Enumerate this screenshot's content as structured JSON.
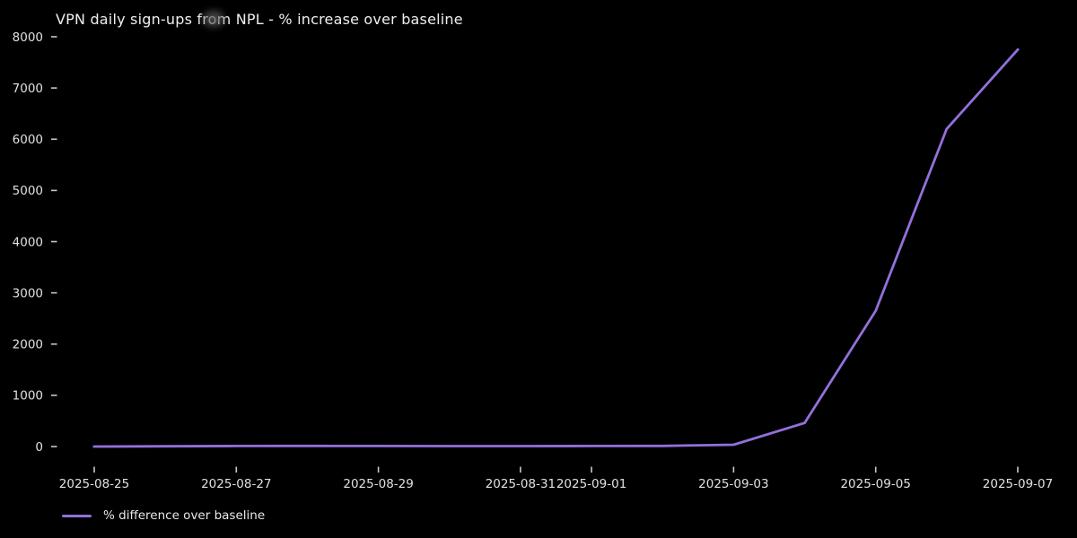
{
  "chart_data": {
    "type": "line",
    "title": "VPN daily sign-ups from NPL - % increase over baseline",
    "x": [
      "2025-08-25",
      "2025-08-26",
      "2025-08-27",
      "2025-08-28",
      "2025-08-29",
      "2025-08-30",
      "2025-08-31",
      "2025-09-01",
      "2025-09-02",
      "2025-09-03",
      "2025-09-04",
      "2025-09-05",
      "2025-09-06",
      "2025-09-07"
    ],
    "series": [
      {
        "name": "% difference over baseline",
        "color": "#9370db",
        "values": [
          0,
          5,
          10,
          12,
          10,
          8,
          8,
          10,
          12,
          35,
          460,
          2650,
          6200,
          7750
        ]
      }
    ],
    "xtick_labels": [
      "2025-08-25",
      "2025-08-27",
      "2025-08-29",
      "2025-08-31",
      "2025-09-01",
      "2025-09-03",
      "2025-09-05",
      "2025-09-07"
    ],
    "ytick_values": [
      0,
      1000,
      2000,
      3000,
      4000,
      5000,
      6000,
      7000,
      8000
    ],
    "ylim": [
      0,
      8000
    ],
    "grid": false,
    "legend_position": "lower-left",
    "background_color": "#000000",
    "text_color": "#e0e0e0",
    "tick_color": "#c8c8c8"
  }
}
